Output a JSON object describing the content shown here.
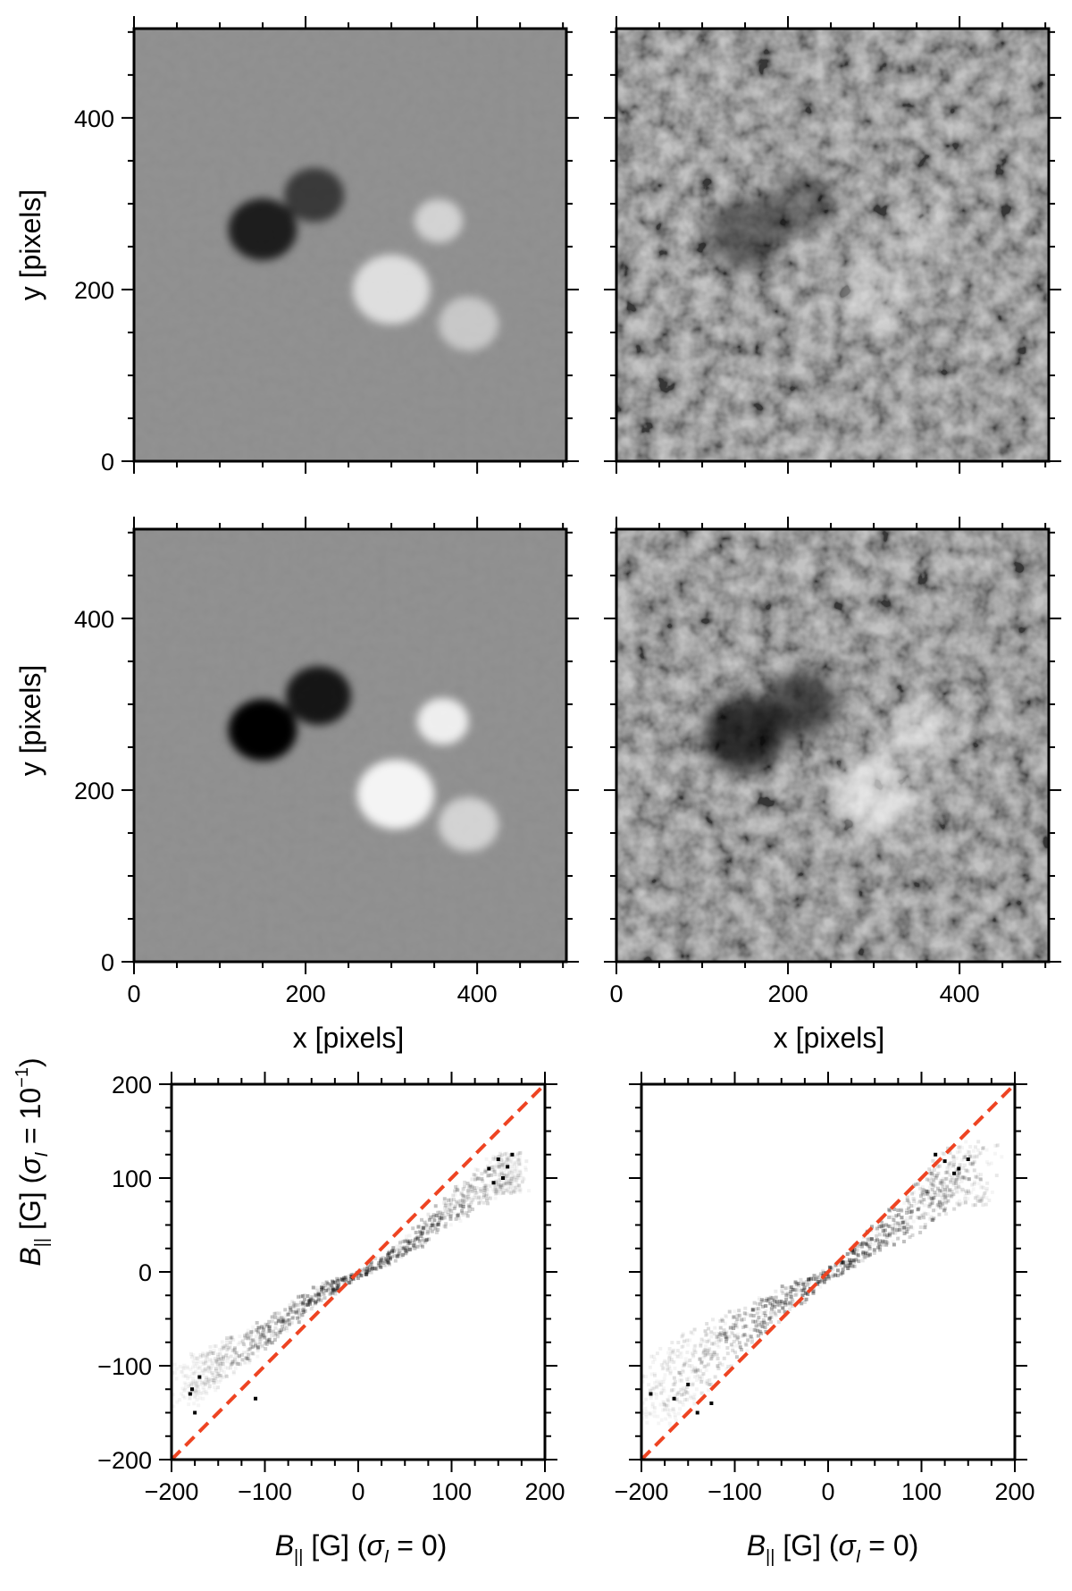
{
  "figure": {
    "rows": [
      {
        "panels": [
          {
            "id": "map-top-left",
            "kind": "map",
            "style": "smooth",
            "x_ticks": [
              "",
              "",
              ""
            ],
            "y_ticks": [
              "0",
              "200",
              "400"
            ],
            "xlabel": "",
            "ylabel": "y [pixels]",
            "colors": {
              "background": "#8e8e8e"
            }
          },
          {
            "id": "map-top-right",
            "kind": "map",
            "style": "noisy",
            "x_ticks": [
              "",
              "",
              ""
            ],
            "y_ticks": [
              "",
              "",
              ""
            ],
            "xlabel": "",
            "ylabel": "",
            "colors": {
              "background": "#7a7a7a"
            }
          }
        ]
      },
      {
        "panels": [
          {
            "id": "map-mid-left",
            "kind": "map",
            "style": "smooth",
            "x_ticks": [
              "0",
              "200",
              "400"
            ],
            "y_ticks": [
              "0",
              "200",
              "400"
            ],
            "xlabel": "x [pixels]",
            "ylabel": "y [pixels]",
            "colors": {
              "background": "#8e8e8e"
            }
          },
          {
            "id": "map-mid-right",
            "kind": "map",
            "style": "noisy",
            "x_ticks": [
              "0",
              "200",
              "400"
            ],
            "y_ticks": [
              "",
              "",
              ""
            ],
            "xlabel": "x [pixels]",
            "ylabel": "",
            "colors": {
              "background": "#7a7a7a"
            }
          }
        ]
      },
      {
        "panels": [
          {
            "id": "scatter-bottom-left",
            "kind": "scatter",
            "x_ticks": [
              "−200",
              "−100",
              "0",
              "100",
              "200"
            ],
            "y_ticks": [
              "−200",
              "−100",
              "0",
              "100",
              "200"
            ],
            "xlabel": {
              "symbol": "B",
              "sub": "||",
              "rest": " [G] (",
              "sigma": "σ",
              "sigma_sub": "I",
              "tail": " = 0)"
            },
            "ylabel": {
              "symbol": "B",
              "sub": "||",
              "rest": " [G] (",
              "sigma": "σ",
              "sigma_sub": "I",
              "tail": " = 10",
              "exp": "−1",
              "close": ")"
            },
            "colors": {
              "reference_line": "#ee4422"
            }
          },
          {
            "id": "scatter-bottom-right",
            "kind": "scatter",
            "x_ticks": [
              "−200",
              "−100",
              "0",
              "100",
              "200"
            ],
            "y_ticks": [
              "",
              "",
              "",
              "",
              ""
            ],
            "xlabel": {
              "symbol": "B",
              "sub": "||",
              "rest": " [G] (",
              "sigma": "σ",
              "sigma_sub": "I",
              "tail": " = 0)"
            },
            "ylabel": null,
            "colors": {
              "reference_line": "#ee4422"
            }
          }
        ]
      }
    ]
  },
  "chart_data": [
    {
      "type": "heatmap",
      "panel": "map-top-left",
      "xlabel": "",
      "ylabel": "y [pixels]",
      "xlim": [
        0,
        504
      ],
      "ylim": [
        0,
        504
      ],
      "x_ticks": [
        0,
        200,
        400
      ],
      "y_ticks": [
        0,
        200,
        400
      ],
      "colormap": "grayscale",
      "features": [
        {
          "polarity": "negative",
          "x": 150,
          "y": 270,
          "radius": 40,
          "strength": 0.8
        },
        {
          "polarity": "negative",
          "x": 210,
          "y": 310,
          "radius": 35,
          "strength": 0.6
        },
        {
          "polarity": "positive",
          "x": 355,
          "y": 280,
          "radius": 28,
          "strength": 0.6
        },
        {
          "polarity": "positive",
          "x": 300,
          "y": 200,
          "radius": 45,
          "strength": 0.7
        },
        {
          "polarity": "positive",
          "x": 390,
          "y": 160,
          "radius": 35,
          "strength": 0.5
        }
      ]
    },
    {
      "type": "heatmap",
      "panel": "map-top-right",
      "xlabel": "",
      "ylabel": "",
      "xlim": [
        0,
        504
      ],
      "ylim": [
        0,
        504
      ],
      "x_ticks": [
        0,
        200,
        400
      ],
      "y_ticks": [
        0,
        200,
        400
      ],
      "colormap": "grayscale",
      "features": [
        {
          "polarity": "negative",
          "x": 150,
          "y": 265,
          "radius": 45,
          "strength": 0.45
        },
        {
          "polarity": "negative",
          "x": 215,
          "y": 300,
          "radius": 40,
          "strength": 0.35
        },
        {
          "polarity": "positive",
          "x": 355,
          "y": 270,
          "radius": 30,
          "strength": 0.3
        },
        {
          "polarity": "positive",
          "x": 300,
          "y": 195,
          "radius": 45,
          "strength": 0.35
        }
      ]
    },
    {
      "type": "heatmap",
      "panel": "map-mid-left",
      "xlabel": "x [pixels]",
      "ylabel": "y [pixels]",
      "xlim": [
        0,
        504
      ],
      "ylim": [
        0,
        504
      ],
      "x_ticks": [
        0,
        200,
        400
      ],
      "y_ticks": [
        0,
        200,
        400
      ],
      "colormap": "grayscale",
      "features": [
        {
          "polarity": "negative",
          "x": 150,
          "y": 270,
          "radius": 40,
          "strength": 1.0
        },
        {
          "polarity": "negative",
          "x": 215,
          "y": 310,
          "radius": 38,
          "strength": 0.85
        },
        {
          "polarity": "positive",
          "x": 360,
          "y": 280,
          "radius": 30,
          "strength": 0.85
        },
        {
          "polarity": "positive",
          "x": 305,
          "y": 195,
          "radius": 45,
          "strength": 0.9
        },
        {
          "polarity": "positive",
          "x": 390,
          "y": 160,
          "radius": 35,
          "strength": 0.6
        }
      ]
    },
    {
      "type": "heatmap",
      "panel": "map-mid-right",
      "xlabel": "x [pixels]",
      "ylabel": "",
      "xlim": [
        0,
        504
      ],
      "ylim": [
        0,
        504
      ],
      "x_ticks": [
        0,
        200,
        400
      ],
      "y_ticks": [
        0,
        200,
        400
      ],
      "colormap": "grayscale",
      "features": [
        {
          "polarity": "negative",
          "x": 150,
          "y": 265,
          "radius": 48,
          "strength": 0.75
        },
        {
          "polarity": "negative",
          "x": 215,
          "y": 300,
          "radius": 42,
          "strength": 0.6
        },
        {
          "polarity": "positive",
          "x": 355,
          "y": 270,
          "radius": 32,
          "strength": 0.55
        },
        {
          "polarity": "positive",
          "x": 300,
          "y": 195,
          "radius": 48,
          "strength": 0.6
        }
      ]
    },
    {
      "type": "scatter",
      "panel": "scatter-bottom-left",
      "xlim": [
        -200,
        200
      ],
      "ylim": [
        -200,
        200
      ],
      "x_ticks": [
        -200,
        -100,
        0,
        100,
        200
      ],
      "y_ticks": [
        -200,
        -100,
        0,
        100,
        200
      ],
      "reference_line": {
        "x": [
          -200,
          200
        ],
        "y": [
          -200,
          200
        ],
        "style": "dashed"
      },
      "density_trend": [
        [
          -190,
          -120
        ],
        [
          -150,
          -95
        ],
        [
          -100,
          -65
        ],
        [
          -50,
          -25
        ],
        [
          0,
          0
        ],
        [
          50,
          28
        ],
        [
          100,
          70
        ],
        [
          150,
          105
        ],
        [
          170,
          110
        ]
      ],
      "spread": 10,
      "dense_points": [
        [
          -178,
          -125
        ],
        [
          -175,
          -150
        ],
        [
          -170,
          -112
        ],
        [
          -110,
          -135
        ],
        [
          -180,
          -130
        ],
        [
          140,
          110
        ],
        [
          150,
          120
        ],
        [
          155,
          100
        ],
        [
          145,
          95
        ],
        [
          160,
          112
        ],
        [
          165,
          125
        ]
      ]
    },
    {
      "type": "scatter",
      "panel": "scatter-bottom-right",
      "xlim": [
        -200,
        200
      ],
      "ylim": [
        -200,
        200
      ],
      "x_ticks": [
        -200,
        -100,
        0,
        100,
        200
      ],
      "y_ticks": [
        -200,
        -100,
        0,
        100,
        200
      ],
      "reference_line": {
        "x": [
          -200,
          200
        ],
        "y": [
          -200,
          200
        ],
        "style": "dashed"
      },
      "density_trend": [
        [
          -190,
          -130
        ],
        [
          -150,
          -100
        ],
        [
          -100,
          -65
        ],
        [
          -50,
          -30
        ],
        [
          0,
          0
        ],
        [
          50,
          35
        ],
        [
          100,
          75
        ],
        [
          130,
          100
        ],
        [
          165,
          108
        ]
      ],
      "spread": 16,
      "dense_points": [
        [
          -190,
          -130
        ],
        [
          -165,
          -135
        ],
        [
          -140,
          -150
        ],
        [
          -125,
          -140
        ],
        [
          -150,
          -120
        ],
        [
          115,
          125
        ],
        [
          125,
          118
        ],
        [
          140,
          110
        ],
        [
          150,
          120
        ],
        [
          135,
          105
        ]
      ]
    }
  ]
}
